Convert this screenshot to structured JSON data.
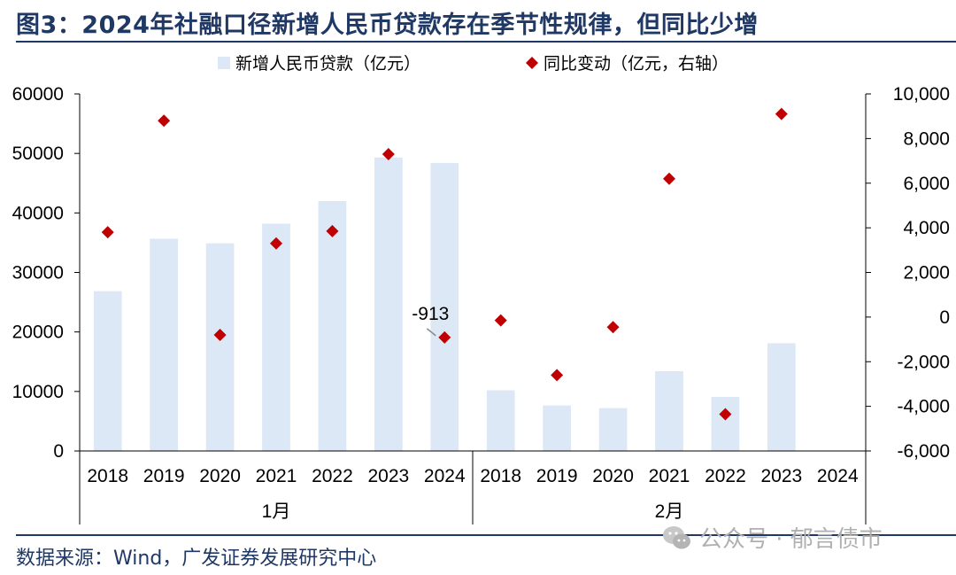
{
  "title": "图3：2024年社融口径新增人民币贷款存在季节性规律，但同比少增",
  "source": "数据来源：Wind，广发证券发展研究中心",
  "watermark": "公众号 · 郁言债市",
  "colors": {
    "bar": "#dce8f5",
    "marker": "#c00000",
    "title": "#1f3864"
  },
  "chart_data": {
    "type": "bar",
    "groups": [
      {
        "label": "1月",
        "categories": [
          "2018",
          "2019",
          "2020",
          "2021",
          "2022",
          "2023",
          "2024"
        ]
      },
      {
        "label": "2月",
        "categories": [
          "2018",
          "2019",
          "2020",
          "2021",
          "2022",
          "2023",
          "2024"
        ]
      }
    ],
    "series": [
      {
        "name": "新增人民币贷款（亿元）",
        "type": "bar",
        "axis": "left",
        "values": [
          26850,
          35668,
          34900,
          38200,
          41988,
          49314,
          48400,
          10200,
          7641,
          7202,
          13400,
          9084,
          18100,
          null
        ]
      },
      {
        "name": "同比变动（亿元，右轴）",
        "type": "scatter",
        "marker": "diamond",
        "axis": "right",
        "values": [
          3800,
          8800,
          -800,
          3300,
          3850,
          7300,
          -913,
          -150,
          -2600,
          -450,
          6200,
          -4350,
          9100,
          null
        ]
      }
    ],
    "annotations": [
      {
        "text": "-913",
        "series": 1,
        "index": 6
      }
    ],
    "yaxis_left": {
      "min": 0,
      "max": 60000,
      "ticks": [
        "0",
        "10000",
        "20000",
        "30000",
        "40000",
        "50000",
        "60000"
      ]
    },
    "yaxis_right": {
      "min": -6000,
      "max": 10000,
      "ticks": [
        "-6,000",
        "-4,000",
        "-2,000",
        "0",
        "2,000",
        "4,000",
        "6,000",
        "8,000",
        "10,000"
      ]
    },
    "legend_position": "top-center",
    "grid": false
  }
}
